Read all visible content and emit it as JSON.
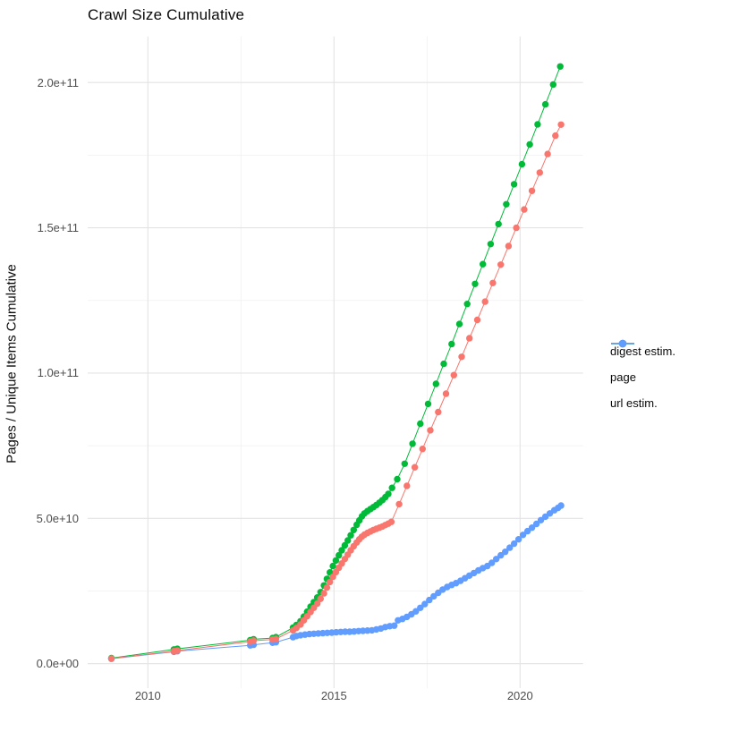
{
  "title": "Crawl Size Cumulative",
  "axes": {
    "ylabel": "Pages / Unique Items Cumulative",
    "y_ticks": [
      {
        "label": "0.0e+00",
        "value_e9": 0
      },
      {
        "label": "5.0e+10",
        "value_e9": 50
      },
      {
        "label": "1.0e+11",
        "value_e9": 100
      },
      {
        "label": "1.5e+11",
        "value_e9": 150
      },
      {
        "label": "2.0e+11",
        "value_e9": 200
      }
    ],
    "y_minor_e9": [
      25,
      75,
      125,
      175
    ],
    "x_ticks": [
      {
        "label": "2010",
        "value": 2010
      },
      {
        "label": "2015",
        "value": 2015
      },
      {
        "label": "2020",
        "value": 2020
      }
    ],
    "x_minor": [
      2012.5,
      2017.5
    ]
  },
  "legend": [
    {
      "label": "digest estim.",
      "color": "#F8766D"
    },
    {
      "label": "page",
      "color": "#00BA38"
    },
    {
      "label": "url estim.",
      "color": "#619CFF"
    }
  ],
  "style": {
    "grid_major_color": "#e3e3e3",
    "grid_minor_color": "#f0f0f0",
    "point_radius": 3.7,
    "line_width": 1
  },
  "chart_data": {
    "type": "scatter",
    "title": "Crawl Size Cumulative",
    "xlabel": "",
    "ylabel": "Pages / Unique Items Cumulative",
    "x_unit": "year",
    "y_unit": "count (values below in billions, 1e9)",
    "xlim": [
      2008.4,
      2021.7
    ],
    "ylim_e9": [
      -8.5,
      215.8
    ],
    "grid": true,
    "legend_position": "right",
    "series": [
      {
        "name": "digest estim.",
        "color": "#F8766D",
        "points_year_e9": [
          [
            2009.02,
            1.8
          ],
          [
            2010.7,
            4.3
          ],
          [
            2010.79,
            4.5
          ],
          [
            2012.75,
            7.6
          ],
          [
            2012.84,
            7.9
          ],
          [
            2013.35,
            8.3
          ],
          [
            2013.44,
            8.5
          ],
          [
            2013.9,
            11.5
          ],
          [
            2013.99,
            12.3
          ],
          [
            2014.1,
            13.5
          ],
          [
            2014.19,
            14.9
          ],
          [
            2014.28,
            16.3
          ],
          [
            2014.37,
            17.8
          ],
          [
            2014.46,
            19.2
          ],
          [
            2014.55,
            20.7
          ],
          [
            2014.64,
            22.3
          ],
          [
            2014.73,
            24.2
          ],
          [
            2014.81,
            26.2
          ],
          [
            2014.89,
            28.1
          ],
          [
            2014.97,
            29.9
          ],
          [
            2015.05,
            31.5
          ],
          [
            2015.13,
            33.0
          ],
          [
            2015.21,
            34.5
          ],
          [
            2015.29,
            36.0
          ],
          [
            2015.37,
            37.5
          ],
          [
            2015.45,
            39.0
          ],
          [
            2015.53,
            40.4
          ],
          [
            2015.61,
            41.7
          ],
          [
            2015.68,
            42.8
          ],
          [
            2015.75,
            43.7
          ],
          [
            2015.82,
            44.4
          ],
          [
            2015.9,
            45.0
          ],
          [
            2015.98,
            45.5
          ],
          [
            2016.06,
            46.0
          ],
          [
            2016.14,
            46.4
          ],
          [
            2016.22,
            46.8
          ],
          [
            2016.3,
            47.2
          ],
          [
            2016.38,
            47.7
          ],
          [
            2016.46,
            48.2
          ],
          [
            2016.54,
            48.8
          ],
          [
            2016.75,
            54.9
          ],
          [
            2016.96,
            61.2
          ],
          [
            2017.17,
            67.6
          ],
          [
            2017.38,
            73.9
          ],
          [
            2017.59,
            80.3
          ],
          [
            2017.8,
            86.6
          ],
          [
            2018.01,
            92.9
          ],
          [
            2018.22,
            99.3
          ],
          [
            2018.43,
            105.6
          ],
          [
            2018.64,
            112.0
          ],
          [
            2018.85,
            118.3
          ],
          [
            2019.06,
            124.6
          ],
          [
            2019.27,
            131.0
          ],
          [
            2019.48,
            137.3
          ],
          [
            2019.69,
            143.7
          ],
          [
            2019.9,
            150.0
          ],
          [
            2020.11,
            156.3
          ],
          [
            2020.32,
            162.7
          ],
          [
            2020.53,
            169.0
          ],
          [
            2020.74,
            175.4
          ],
          [
            2020.95,
            181.7
          ],
          [
            2021.1,
            185.5
          ]
        ]
      },
      {
        "name": "page",
        "color": "#00BA38",
        "points_year_e9": [
          [
            2009.02,
            1.9
          ],
          [
            2010.7,
            4.9
          ],
          [
            2010.79,
            5.1
          ],
          [
            2012.75,
            8.1
          ],
          [
            2012.84,
            8.4
          ],
          [
            2013.35,
            8.8
          ],
          [
            2013.44,
            9.1
          ],
          [
            2013.9,
            12.4
          ],
          [
            2013.99,
            13.3
          ],
          [
            2014.1,
            14.6
          ],
          [
            2014.19,
            16.2
          ],
          [
            2014.28,
            17.9
          ],
          [
            2014.37,
            19.6
          ],
          [
            2014.46,
            21.2
          ],
          [
            2014.55,
            22.8
          ],
          [
            2014.64,
            24.6
          ],
          [
            2014.73,
            26.9
          ],
          [
            2014.81,
            29.2
          ],
          [
            2014.89,
            31.4
          ],
          [
            2014.97,
            33.6
          ],
          [
            2015.05,
            35.5
          ],
          [
            2015.13,
            37.3
          ],
          [
            2015.21,
            39.0
          ],
          [
            2015.29,
            40.7
          ],
          [
            2015.37,
            42.4
          ],
          [
            2015.45,
            44.2
          ],
          [
            2015.53,
            46.0
          ],
          [
            2015.61,
            47.8
          ],
          [
            2015.68,
            49.3
          ],
          [
            2015.75,
            50.7
          ],
          [
            2015.82,
            51.7
          ],
          [
            2015.9,
            52.5
          ],
          [
            2015.98,
            53.2
          ],
          [
            2016.06,
            53.9
          ],
          [
            2016.14,
            54.6
          ],
          [
            2016.22,
            55.4
          ],
          [
            2016.3,
            56.3
          ],
          [
            2016.38,
            57.3
          ],
          [
            2016.46,
            58.4
          ],
          [
            2016.56,
            60.5
          ],
          [
            2016.7,
            63.5
          ],
          [
            2016.9,
            68.8
          ],
          [
            2017.11,
            75.7
          ],
          [
            2017.32,
            82.6
          ],
          [
            2017.53,
            89.4
          ],
          [
            2017.74,
            96.3
          ],
          [
            2017.95,
            103.2
          ],
          [
            2018.16,
            110.0
          ],
          [
            2018.37,
            116.9
          ],
          [
            2018.58,
            123.8
          ],
          [
            2018.79,
            130.7
          ],
          [
            2019.0,
            137.5
          ],
          [
            2019.21,
            144.4
          ],
          [
            2019.42,
            151.3
          ],
          [
            2019.63,
            158.1
          ],
          [
            2019.84,
            165.0
          ],
          [
            2020.05,
            171.9
          ],
          [
            2020.26,
            178.7
          ],
          [
            2020.47,
            185.6
          ],
          [
            2020.68,
            192.5
          ],
          [
            2020.89,
            199.3
          ],
          [
            2021.08,
            205.5
          ]
        ]
      },
      {
        "name": "url estim.",
        "color": "#619CFF",
        "points_year_e9": [
          [
            2009.02,
            1.7
          ],
          [
            2010.7,
            4.1
          ],
          [
            2010.79,
            4.3
          ],
          [
            2012.75,
            6.3
          ],
          [
            2012.84,
            6.5
          ],
          [
            2013.35,
            7.2
          ],
          [
            2013.44,
            7.4
          ],
          [
            2013.9,
            9.1
          ],
          [
            2013.99,
            9.5
          ],
          [
            2014.1,
            9.8
          ],
          [
            2014.22,
            10.0
          ],
          [
            2014.34,
            10.2
          ],
          [
            2014.46,
            10.3
          ],
          [
            2014.58,
            10.4
          ],
          [
            2014.7,
            10.5
          ],
          [
            2014.82,
            10.6
          ],
          [
            2014.94,
            10.7
          ],
          [
            2015.06,
            10.8
          ],
          [
            2015.18,
            10.9
          ],
          [
            2015.3,
            11.0
          ],
          [
            2015.42,
            11.0
          ],
          [
            2015.54,
            11.1
          ],
          [
            2015.66,
            11.2
          ],
          [
            2015.78,
            11.3
          ],
          [
            2015.9,
            11.4
          ],
          [
            2016.02,
            11.5
          ],
          [
            2016.14,
            11.8
          ],
          [
            2016.26,
            12.1
          ],
          [
            2016.38,
            12.6
          ],
          [
            2016.5,
            12.9
          ],
          [
            2016.62,
            13.1
          ],
          [
            2016.72,
            14.9
          ],
          [
            2016.84,
            15.4
          ],
          [
            2016.96,
            16.1
          ],
          [
            2017.08,
            17.0
          ],
          [
            2017.2,
            18.0
          ],
          [
            2017.32,
            19.2
          ],
          [
            2017.44,
            20.5
          ],
          [
            2017.56,
            21.9
          ],
          [
            2017.68,
            23.2
          ],
          [
            2017.8,
            24.4
          ],
          [
            2017.92,
            25.5
          ],
          [
            2018.04,
            26.4
          ],
          [
            2018.16,
            27.1
          ],
          [
            2018.28,
            27.7
          ],
          [
            2018.4,
            28.5
          ],
          [
            2018.52,
            29.4
          ],
          [
            2018.64,
            30.3
          ],
          [
            2018.76,
            31.2
          ],
          [
            2018.88,
            32.1
          ],
          [
            2019.0,
            32.9
          ],
          [
            2019.12,
            33.6
          ],
          [
            2019.24,
            34.7
          ],
          [
            2019.36,
            36.0
          ],
          [
            2019.48,
            37.3
          ],
          [
            2019.6,
            38.5
          ],
          [
            2019.72,
            39.9
          ],
          [
            2019.84,
            41.3
          ],
          [
            2019.96,
            42.8
          ],
          [
            2020.08,
            44.3
          ],
          [
            2020.2,
            45.6
          ],
          [
            2020.32,
            46.8
          ],
          [
            2020.44,
            48.1
          ],
          [
            2020.56,
            49.4
          ],
          [
            2020.68,
            50.6
          ],
          [
            2020.8,
            51.7
          ],
          [
            2020.92,
            52.8
          ],
          [
            2021.02,
            53.6
          ],
          [
            2021.1,
            54.4
          ]
        ]
      }
    ]
  }
}
